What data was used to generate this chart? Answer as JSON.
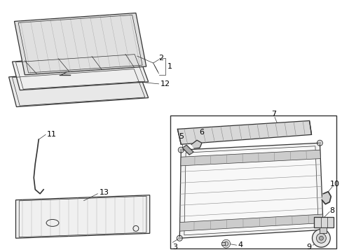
{
  "bg_color": "#ffffff",
  "line_color": "#333333",
  "fig_width": 4.89,
  "fig_height": 3.6,
  "dpi": 100
}
